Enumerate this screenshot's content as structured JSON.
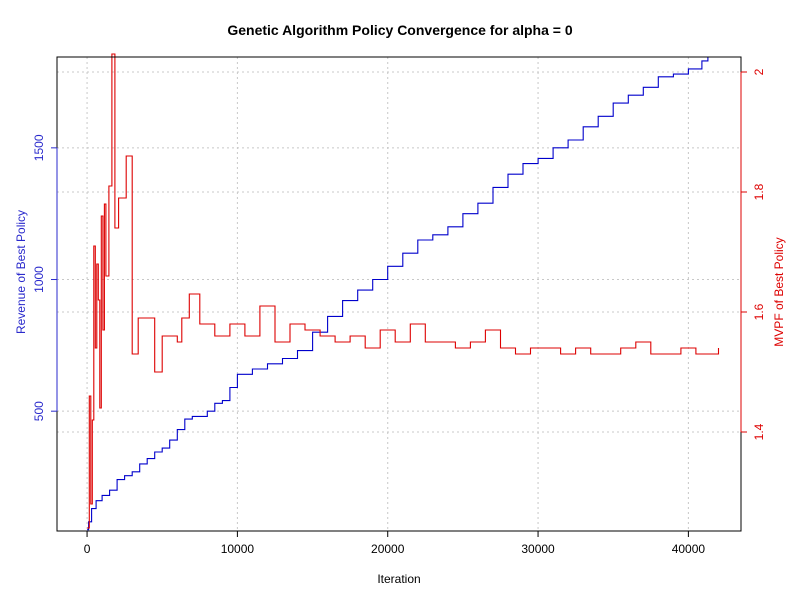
{
  "chart_data": {
    "type": "line",
    "title": "Genetic Algorithm Policy Convergence for alpha = 0",
    "xlabel": "Iteration",
    "ylabel_left": "Revenue of Best Policy",
    "ylabel_right": "MVPF of Best Policy",
    "xlim": [
      -2000,
      43500
    ],
    "ylim_left": [
      45,
      1845
    ],
    "ylim_right": [
      1.235,
      2.025
    ],
    "x_ticks": [
      0,
      10000,
      20000,
      30000,
      40000
    ],
    "x_tick_labels": [
      "0",
      "10000",
      "20000",
      "30000",
      "40000"
    ],
    "left_ticks": [
      500,
      1000,
      1500
    ],
    "left_tick_labels": [
      "500",
      "1000",
      "1500"
    ],
    "right_ticks": [
      1.4,
      1.6,
      1.8,
      2.0
    ],
    "right_tick_labels": [
      "1.4",
      "1.6",
      "1.8",
      "2"
    ],
    "grid": true,
    "colors": {
      "revenue": "#0000CC",
      "mvpf": "#DD0000",
      "grid": "#C8C8C8"
    },
    "series": [
      {
        "axis": "left",
        "color": "#0000CC",
        "points": [
          [
            0,
            50
          ],
          [
            100,
            80
          ],
          [
            300,
            130
          ],
          [
            600,
            160
          ],
          [
            1000,
            180
          ],
          [
            1500,
            200
          ],
          [
            2000,
            240
          ],
          [
            2500,
            255
          ],
          [
            3000,
            270
          ],
          [
            3500,
            300
          ],
          [
            4000,
            320
          ],
          [
            4500,
            345
          ],
          [
            5000,
            360
          ],
          [
            5500,
            390
          ],
          [
            6000,
            430
          ],
          [
            6500,
            470
          ],
          [
            7000,
            480
          ],
          [
            8000,
            500
          ],
          [
            8500,
            530
          ],
          [
            9000,
            540
          ],
          [
            9500,
            590
          ],
          [
            10000,
            640
          ],
          [
            11000,
            660
          ],
          [
            12000,
            680
          ],
          [
            13000,
            700
          ],
          [
            14000,
            730
          ],
          [
            15000,
            800
          ],
          [
            16000,
            860
          ],
          [
            17000,
            920
          ],
          [
            18000,
            960
          ],
          [
            19000,
            1000
          ],
          [
            20000,
            1050
          ],
          [
            21000,
            1100
          ],
          [
            22000,
            1150
          ],
          [
            23000,
            1170
          ],
          [
            24000,
            1200
          ],
          [
            25000,
            1250
          ],
          [
            26000,
            1290
          ],
          [
            27000,
            1350
          ],
          [
            28000,
            1400
          ],
          [
            29000,
            1440
          ],
          [
            30000,
            1460
          ],
          [
            31000,
            1500
          ],
          [
            32000,
            1530
          ],
          [
            33000,
            1580
          ],
          [
            34000,
            1620
          ],
          [
            35000,
            1670
          ],
          [
            36000,
            1700
          ],
          [
            37000,
            1730
          ],
          [
            38000,
            1770
          ],
          [
            39000,
            1780
          ],
          [
            40000,
            1800
          ],
          [
            40900,
            1830
          ],
          [
            41300,
            1845
          ]
        ]
      },
      {
        "axis": "right",
        "color": "#DD0000",
        "points": [
          [
            0,
            1.24
          ],
          [
            150,
            1.46
          ],
          [
            250,
            1.28
          ],
          [
            350,
            1.42
          ],
          [
            450,
            1.71
          ],
          [
            550,
            1.54
          ],
          [
            650,
            1.68
          ],
          [
            750,
            1.62
          ],
          [
            850,
            1.44
          ],
          [
            950,
            1.76
          ],
          [
            1050,
            1.57
          ],
          [
            1150,
            1.78
          ],
          [
            1250,
            1.66
          ],
          [
            1450,
            1.81
          ],
          [
            1650,
            2.03
          ],
          [
            1850,
            1.74
          ],
          [
            2100,
            1.79
          ],
          [
            2600,
            1.86
          ],
          [
            3000,
            1.53
          ],
          [
            3400,
            1.59
          ],
          [
            4500,
            1.5
          ],
          [
            5000,
            1.56
          ],
          [
            6000,
            1.55
          ],
          [
            6300,
            1.59
          ],
          [
            6800,
            1.63
          ],
          [
            7500,
            1.58
          ],
          [
            8500,
            1.56
          ],
          [
            9500,
            1.58
          ],
          [
            10500,
            1.56
          ],
          [
            11500,
            1.61
          ],
          [
            12500,
            1.55
          ],
          [
            13500,
            1.58
          ],
          [
            14500,
            1.57
          ],
          [
            15500,
            1.56
          ],
          [
            16500,
            1.55
          ],
          [
            17500,
            1.56
          ],
          [
            18500,
            1.54
          ],
          [
            19500,
            1.57
          ],
          [
            20500,
            1.55
          ],
          [
            21500,
            1.58
          ],
          [
            22500,
            1.55
          ],
          [
            23500,
            1.55
          ],
          [
            24500,
            1.54
          ],
          [
            25500,
            1.55
          ],
          [
            26500,
            1.57
          ],
          [
            27500,
            1.54
          ],
          [
            28500,
            1.53
          ],
          [
            29500,
            1.54
          ],
          [
            30500,
            1.54
          ],
          [
            31500,
            1.53
          ],
          [
            32500,
            1.54
          ],
          [
            33500,
            1.53
          ],
          [
            34500,
            1.53
          ],
          [
            35500,
            1.54
          ],
          [
            36500,
            1.55
          ],
          [
            37500,
            1.53
          ],
          [
            38500,
            1.53
          ],
          [
            39500,
            1.54
          ],
          [
            40500,
            1.53
          ],
          [
            41500,
            1.53
          ],
          [
            42000,
            1.54
          ]
        ]
      }
    ]
  }
}
